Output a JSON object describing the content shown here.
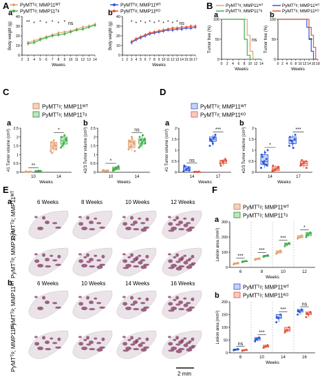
{
  "panels": {
    "A": "A",
    "B": "B",
    "C": "C",
    "D": "D",
    "E": "E",
    "F": "F"
  },
  "sub": {
    "a": "a",
    "b": "b"
  },
  "legends": {
    "mmp11wt": "PyMTᵀᵍ; MMP11ᵂᵀ",
    "mmp11tg": "PyMTᵀᵍ; MMP11ᵀᵍ",
    "mmp11ko": "PyMTᵀᵍ; MMP11ᴷᴼ"
  },
  "labels": {
    "weeks": "Weeks",
    "body_weight": "Body weight (g)",
    "tumor_free": "Tumor free (%)",
    "t1_volume": "#1 Tumor volume (cm³)",
    "t23_volume": "#2/3 Tumor volume (cm³)",
    "lesion_area": "Lesion area (mm²)",
    "scale_bar": "2 mm"
  },
  "significance": {
    "ns": "ns",
    "s1": "*",
    "s2": "**",
    "s3": "***"
  },
  "E": {
    "row_labels_a": [
      "PyMTᵀᵍ; MMP11ᵂᵀ",
      "PyMTᵀᵍ; MMP11ᵀᵍ"
    ],
    "row_labels_b": [
      "PyMTᵀᵍ; MMP11ᵂᵀ",
      "PyMTᵀᵍ; MMP11ᴷᴼ"
    ],
    "weeks_a": [
      "6 Weeks",
      "8 Weeks",
      "10 Weeks",
      "12 Weeks"
    ],
    "weeks_b": [
      "6 Weeks",
      "10 Weeks",
      "14 Weeks",
      "16 Weeks"
    ]
  },
  "colors": {
    "wt_orange": "#e3a173",
    "tg_green": "#3dae49",
    "wt_blue": "#2a56d9",
    "ko_red": "#e2533b",
    "stain": "#7a2b5a"
  },
  "chart_data": [
    {
      "id": "Aa",
      "type": "line",
      "x": [
        3,
        4,
        5,
        6,
        7,
        8,
        9,
        10,
        11,
        12,
        13,
        14
      ],
      "xlim": [
        2,
        14
      ],
      "ylim": [
        0,
        40
      ],
      "xticks": [
        2,
        3,
        4,
        5,
        6,
        7,
        8,
        9,
        10,
        11,
        12,
        13,
        14
      ],
      "yticks": [
        0,
        10,
        20,
        30,
        40
      ],
      "xlabel": "Weeks",
      "ylabel": "Body weight (g)",
      "series": [
        {
          "name": "PyMTᵀᵍ; MMP11ᵂᵀ",
          "values": [
            13,
            15,
            17,
            19,
            21,
            23,
            24,
            25,
            27,
            29,
            30,
            32
          ]
        },
        {
          "name": "PyMTᵀᵍ; MMP11ᵀᵍ",
          "values": [
            12,
            13,
            16,
            18,
            20,
            21,
            22,
            24,
            26,
            27,
            29,
            31
          ]
        }
      ],
      "annotations": [
        "**",
        "*",
        "*",
        "*",
        "*",
        "*",
        "*",
        "ns"
      ]
    },
    {
      "id": "Ab",
      "type": "line",
      "x": [
        3,
        4,
        5,
        6,
        7,
        8,
        9,
        10,
        11,
        12,
        13,
        14,
        15,
        16,
        17
      ],
      "xlim": [
        1,
        17
      ],
      "ylim": [
        0,
        40
      ],
      "xticks": [
        1,
        2,
        3,
        4,
        5,
        6,
        7,
        8,
        9,
        10,
        11,
        12,
        13,
        14,
        15,
        16,
        17
      ],
      "yticks": [
        0,
        10,
        20,
        30,
        40
      ],
      "xlabel": "Weeks",
      "ylabel": "Body weight (g)",
      "series": [
        {
          "name": "PyMTᵀᵍ; MMP11ᵂᵀ",
          "values": [
            13,
            16,
            18,
            20,
            22,
            23,
            24,
            25,
            26,
            26,
            27,
            27,
            28,
            28,
            29
          ]
        },
        {
          "name": "PyMTᵀᵍ; MMP11ᴷᴼ",
          "values": [
            14,
            17,
            19,
            21,
            23,
            24,
            25,
            26,
            27,
            28,
            28,
            29,
            29,
            30,
            30
          ]
        }
      ],
      "annotations": [
        "*",
        "*",
        "*",
        "*",
        "*",
        "*",
        "*",
        "*",
        "*",
        "*",
        "*",
        "ns"
      ]
    },
    {
      "id": "Ba",
      "type": "line",
      "xlim": [
        0,
        14
      ],
      "ylim": [
        0,
        100
      ],
      "xticks": [
        0,
        2,
        4,
        6,
        8,
        10,
        12,
        14
      ],
      "yticks": [
        0,
        50,
        100
      ],
      "xlabel": "Weeks",
      "ylabel": "Tumor free (%)",
      "series": [
        {
          "name": "PyMTᵀᵍ; MMP11ᵂᵀ",
          "steps": [
            [
              0,
              100
            ],
            [
              9,
              100
            ],
            [
              9,
              60
            ],
            [
              10,
              60
            ],
            [
              10,
              20
            ],
            [
              11,
              20
            ],
            [
              11,
              0
            ],
            [
              14,
              0
            ]
          ]
        },
        {
          "name": "PyMTᵀᵍ; MMP11ᵀᵍ",
          "steps": [
            [
              0,
              100
            ],
            [
              8,
              100
            ],
            [
              8,
              50
            ],
            [
              9,
              50
            ],
            [
              9,
              10
            ],
            [
              10,
              10
            ],
            [
              10,
              0
            ],
            [
              14,
              0
            ]
          ]
        }
      ],
      "annotations": [
        "ns"
      ]
    },
    {
      "id": "Bb",
      "type": "line",
      "xlim": [
        0,
        18
      ],
      "ylim": [
        0,
        100
      ],
      "xticks": [
        0,
        2,
        4,
        6,
        8,
        10,
        12,
        14,
        16,
        18
      ],
      "yticks": [
        0,
        50,
        100
      ],
      "xlabel": "Weeks",
      "ylabel": "Tumor free (%)",
      "series": [
        {
          "name": "PyMTᵀᵍ; MMP11ᵂᵀ",
          "steps": [
            [
              0,
              100
            ],
            [
              13,
              100
            ],
            [
              13,
              80
            ],
            [
              14,
              80
            ],
            [
              14,
              50
            ],
            [
              15,
              50
            ],
            [
              15,
              20
            ],
            [
              16,
              20
            ],
            [
              16,
              0
            ],
            [
              18,
              0
            ]
          ]
        },
        {
          "name": "PyMTᵀᵍ; MMP11ᴷᴼ",
          "steps": [
            [
              0,
              100
            ],
            [
              14,
              100
            ],
            [
              14,
              80
            ],
            [
              15,
              80
            ],
            [
              15,
              60
            ],
            [
              16,
              60
            ],
            [
              16,
              30
            ],
            [
              17,
              30
            ],
            [
              17,
              0
            ],
            [
              18,
              0
            ]
          ]
        }
      ],
      "annotations": [
        "**"
      ]
    },
    {
      "id": "Ca",
      "type": "scatter",
      "categories": [
        "10",
        "14"
      ],
      "ylim": [
        0,
        2.5
      ],
      "yticks": [
        0,
        0.5,
        1.0,
        1.5,
        2.0,
        2.5
      ],
      "xlabel": "Weeks",
      "ylabel": "#1 Tumor volume (cm³)",
      "series": [
        {
          "name": "PyMTᵀᵍ; MMP11ᵂᵀ",
          "values": [
            [
              0.02,
              0.03,
              0.04,
              0.05,
              0.01,
              0.03
            ],
            [
              1.2,
              1.4,
              1.5,
              1.7,
              1.8,
              1.3,
              1.1,
              1.6
            ]
          ]
        },
        {
          "name": "PyMTᵀᵍ; MMP11ᵀᵍ",
          "values": [
            [
              0.05,
              0.07,
              0.08,
              0.06,
              0.09,
              0.04
            ],
            [
              1.4,
              1.6,
              1.9,
              2.0,
              1.7,
              1.8,
              1.5,
              2.1
            ]
          ]
        }
      ],
      "annotations": [
        "**",
        "*"
      ]
    },
    {
      "id": "Cb",
      "type": "scatter",
      "categories": [
        "10",
        "14"
      ],
      "ylim": [
        0,
        2.5
      ],
      "yticks": [
        0,
        0.5,
        1.0,
        1.5,
        2.0,
        2.5
      ],
      "xlabel": "Weeks",
      "ylabel": "#2/3 Tumor volume (cm³)",
      "series": [
        {
          "name": "PyMTᵀᵍ; MMP11ᵂᵀ",
          "values": [
            [
              0.05,
              0.08,
              0.1,
              0.12,
              0.06,
              0.09,
              0.11,
              0.07
            ],
            [
              1.3,
              1.5,
              1.7,
              1.8,
              2.0,
              1.6,
              1.4,
              1.9,
              1.2,
              1.75
            ]
          ]
        },
        {
          "name": "PyMTᵀᵍ; MMP11ᵀᵍ",
          "values": [
            [
              0.1,
              0.2,
              0.3,
              0.15,
              0.25,
              0.35,
              0.12,
              0.22
            ],
            [
              1.4,
              1.6,
              1.8,
              2.0,
              1.7,
              1.9,
              1.5,
              2.1,
              1.65,
              1.85
            ]
          ]
        }
      ],
      "annotations": [
        "*",
        "ns"
      ]
    },
    {
      "id": "Da",
      "type": "scatter",
      "categories": [
        "14",
        "17"
      ],
      "ylim": [
        0,
        2.0
      ],
      "yticks": [
        0,
        0.5,
        1.0,
        1.5,
        2.0
      ],
      "xlabel": "Weeks",
      "ylabel": "#1 Tumor volume (cm³)",
      "series": [
        {
          "name": "PyMTᵀᵍ; MMP11ᵂᵀ",
          "values": [
            [
              0.05,
              0.1,
              0.2,
              0.3,
              0.15,
              0.08,
              0.25
            ],
            [
              1.2,
              1.4,
              1.6,
              1.5,
              1.3,
              1.7,
              1.45,
              1.55
            ]
          ]
        },
        {
          "name": "PyMTᵀᵍ; MMP11ᴷᴼ",
          "values": [
            [
              0.01,
              0.02,
              0.03,
              0.02,
              0.01
            ],
            [
              0.4,
              0.5,
              0.6,
              0.3,
              0.45,
              0.55
            ]
          ]
        }
      ],
      "annotations": [
        "ns",
        "***"
      ]
    },
    {
      "id": "Db",
      "type": "scatter",
      "categories": [
        "14",
        "17"
      ],
      "ylim": [
        0,
        2.0
      ],
      "yticks": [
        0,
        0.5,
        1.0,
        1.5,
        2.0
      ],
      "xlabel": "Weeks",
      "ylabel": "#2/3 Tumor volume (cm³)",
      "series": [
        {
          "name": "PyMTᵀᵍ; MMP11ᵂᵀ",
          "values": [
            [
              0.2,
              0.4,
              0.6,
              0.8,
              0.5,
              0.3,
              0.7,
              0.9,
              1.0,
              0.45,
              0.35
            ],
            [
              1.2,
              1.4,
              1.5,
              1.6,
              1.3,
              1.7,
              1.45,
              1.1
            ]
          ]
        },
        {
          "name": "PyMTᵀᵍ; MMP11ᴷᴼ",
          "values": [
            [
              0.05,
              0.1,
              0.2,
              0.3,
              0.15,
              0.25,
              0.08
            ],
            [
              0.3,
              0.4,
              0.5,
              0.35,
              0.45,
              0.2,
              0.55
            ]
          ]
        }
      ],
      "annotations": [
        "*",
        "***"
      ]
    },
    {
      "id": "Fa",
      "type": "scatter",
      "categories": [
        "6",
        "8",
        "10",
        "12"
      ],
      "ylim": [
        0,
        300
      ],
      "yticks": [
        0,
        100,
        200,
        300
      ],
      "xlabel": "Weeks",
      "ylabel": "Lesion area (mm²)",
      "series": [
        {
          "name": "PyMTᵀᵍ; MMP11ᵂᵀ",
          "values": [
            [
              20,
              25,
              30,
              22
            ],
            [
              50,
              55,
              60,
              52
            ],
            [
              90,
              100,
              110,
              95
            ],
            [
              190,
              200,
              210,
              195
            ]
          ]
        },
        {
          "name": "PyMTᵀᵍ; MMP11ᵀᵍ",
          "values": [
            [
              35,
              40,
              42,
              38
            ],
            [
              70,
              75,
              80,
              72
            ],
            [
              140,
              150,
              160,
              155
            ],
            [
              200,
              220,
              230,
              210
            ]
          ]
        }
      ],
      "annotations": [
        "***",
        "***",
        "***",
        "*"
      ]
    },
    {
      "id": "Fb",
      "type": "scatter",
      "categories": [
        "6",
        "10",
        "14",
        "16"
      ],
      "ylim": [
        0,
        200
      ],
      "yticks": [
        0,
        50,
        100,
        150,
        200
      ],
      "xlabel": "Weeks",
      "ylabel": "Lesion area (mm²)",
      "series": [
        {
          "name": "PyMTᵀᵍ; MMP11ᵂᵀ",
          "values": [
            [
              10,
              12,
              15,
              11
            ],
            [
              45,
              55,
              60,
              50
            ],
            [
              120,
              135,
              150,
              140
            ],
            [
              150,
              160,
              170,
              165
            ]
          ]
        },
        {
          "name": "PyMTᵀᵍ; MMP11ᴷᴼ",
          "values": [
            [
              8,
              10,
              12,
              9
            ],
            [
              20,
              25,
              30,
              22
            ],
            [
              80,
              90,
              100,
              85
            ],
            [
              140,
              150,
              160,
              155
            ]
          ]
        }
      ],
      "annotations": [
        "ns",
        "***",
        "***",
        "ns"
      ]
    }
  ]
}
